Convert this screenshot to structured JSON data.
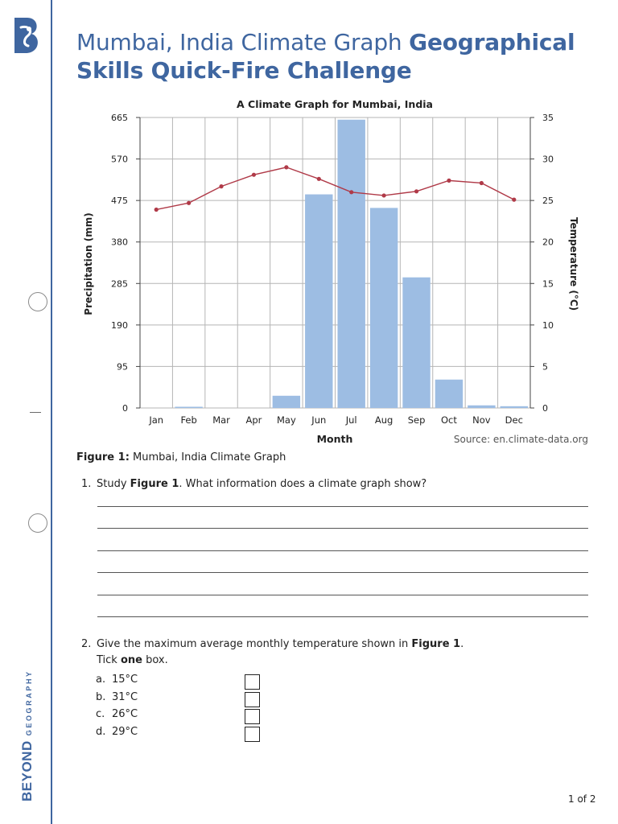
{
  "header": {
    "title_plain": "Mumbai, India Climate Graph ",
    "title_bold": "Geographical Skills Quick-Fire Challenge"
  },
  "sidebar": {
    "brand_main": "BEYOND",
    "brand_sub": "GEOGRAPHY"
  },
  "chart_data": {
    "type": "bar",
    "title": "A Climate Graph for Mumbai, India",
    "xlabel": "Month",
    "ylabel": "Precipitation (mm)",
    "y2label": "Temperature (°C)",
    "source": "Source: en.climate-data.org",
    "categories": [
      "Jan",
      "Feb",
      "Mar",
      "Apr",
      "May",
      "Jun",
      "Jul",
      "Aug",
      "Sep",
      "Oct",
      "Nov",
      "Dec"
    ],
    "ylim": [
      0,
      665
    ],
    "y_ticks": [
      0,
      95,
      190,
      285,
      380,
      475,
      570,
      665
    ],
    "y2lim": [
      0,
      35
    ],
    "y2_ticks": [
      0,
      5,
      10,
      15,
      20,
      25,
      30,
      35
    ],
    "grid": true,
    "colors": {
      "bar": "#9dbde3",
      "line": "#b03a48"
    },
    "series": [
      {
        "type": "bar",
        "axis": "left",
        "values": [
          0,
          2,
          0,
          0,
          28,
          489,
          660,
          458,
          299,
          65,
          6,
          4
        ]
      },
      {
        "type": "line",
        "axis": "right",
        "values": [
          23.9,
          24.7,
          26.7,
          28.1,
          29.0,
          27.6,
          26.0,
          25.6,
          26.1,
          27.4,
          27.1,
          25.1
        ]
      }
    ]
  },
  "figure_caption": {
    "label": "Figure 1:",
    "text": " Mumbai, India Climate Graph"
  },
  "q1": {
    "number": "1.",
    "text_a": "Study ",
    "text_b": "Figure 1",
    "text_c": ". What information does a climate graph show?"
  },
  "q2": {
    "number": "2.",
    "text_a": "Give the maximum average monthly temperature shown in ",
    "text_b": "Figure 1",
    "text_c": ".",
    "text_d": "Tick ",
    "text_e": "one",
    "text_f": " box.",
    "options": [
      {
        "letter": "a.",
        "text": "15°C"
      },
      {
        "letter": "b.",
        "text": "31°C"
      },
      {
        "letter": "c.",
        "text": "26°C"
      },
      {
        "letter": "d.",
        "text": "29°C"
      }
    ]
  },
  "footer": {
    "page": "1 of 2"
  }
}
